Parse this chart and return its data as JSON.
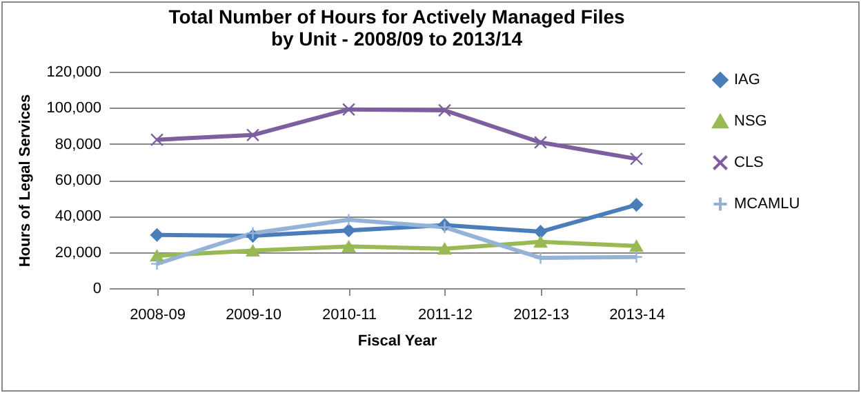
{
  "chart_data": {
    "type": "line",
    "title": [
      "Total Number of Hours for Actively Managed Files",
      "by Unit - 2008/09 to 2013/14"
    ],
    "xlabel": "Fiscal Year",
    "ylabel": "Hours of Legal Services",
    "categories": [
      "2008-09",
      "2009-10",
      "2010-11",
      "2011-12",
      "2012-13",
      "2013-14"
    ],
    "series": [
      {
        "name": "IAG",
        "color": "#4a7ebb",
        "marker": "diamond",
        "values": [
          29500,
          29000,
          32000,
          35000,
          31300,
          46200
        ]
      },
      {
        "name": "NSG",
        "color": "#98b954",
        "marker": "triangle",
        "values": [
          18000,
          20800,
          23100,
          21900,
          25700,
          23400
        ]
      },
      {
        "name": "CLS",
        "color": "#7d5fa0",
        "marker": "cross",
        "values": [
          82300,
          84900,
          99100,
          98600,
          80800,
          71700
        ]
      },
      {
        "name": "MCAMLU",
        "color": "#95b3d7",
        "marker": "plus",
        "values": [
          13500,
          30500,
          37900,
          33800,
          16800,
          17300
        ]
      }
    ],
    "ylim": [
      0,
      120000
    ],
    "yticks": [
      0,
      {
        "value": 20000,
        "label": "20,000"
      },
      {
        "value": 40000,
        "label": "40,000"
      },
      {
        "value": 60000,
        "label": "60,000"
      },
      {
        "value": 80000,
        "label": "80,000"
      },
      {
        "value": 100000,
        "label": "100,000"
      },
      {
        "value": 120000,
        "label": "120,000"
      }
    ],
    "grid": "y",
    "legend": "right"
  }
}
